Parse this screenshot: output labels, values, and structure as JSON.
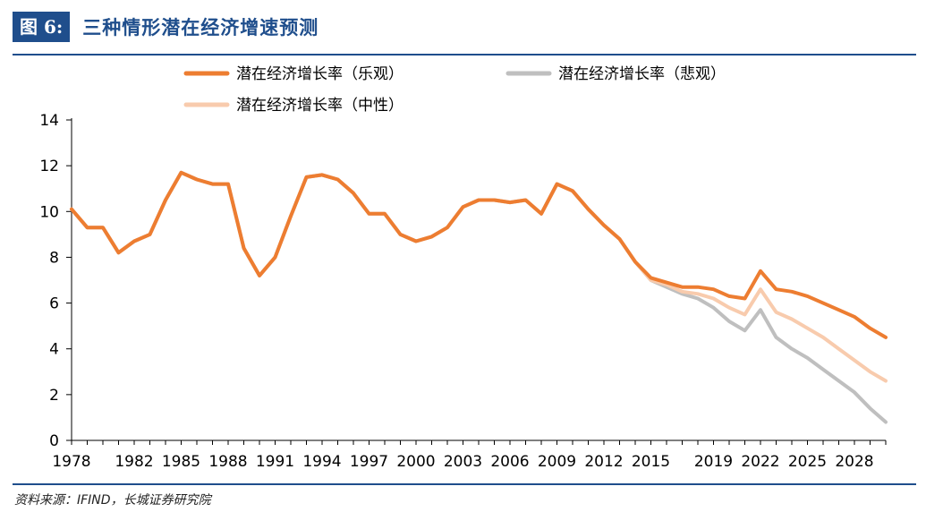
{
  "figure_label": "图 6:",
  "figure_title": "三种情形潜在经济增速预测",
  "source": "资料来源：IFIND，长城证券研究院",
  "colors": {
    "optimistic": "#ED7D31",
    "pessimistic": "#BFBFBF",
    "neutral": "#F8CBAD",
    "accent": "#1F4E8C"
  },
  "chart_data": {
    "type": "line",
    "title": "",
    "xlabel": "",
    "ylabel": "",
    "ylim": [
      0,
      14
    ],
    "xlim": [
      1978,
      2030
    ],
    "yticks": [
      0,
      2,
      4,
      6,
      8,
      10,
      12,
      14
    ],
    "xticks": [
      1978,
      1982,
      1985,
      1988,
      1991,
      1994,
      1997,
      2000,
      2003,
      2006,
      2009,
      2012,
      2015,
      2019,
      2022,
      2025,
      2028
    ],
    "grid": false,
    "legend_position": "top",
    "series": [
      {
        "name": "潜在经济增长率（乐观）",
        "color": "#ED7D31",
        "x": [
          1978,
          1979,
          1980,
          1981,
          1982,
          1983,
          1984,
          1985,
          1986,
          1987,
          1988,
          1989,
          1990,
          1991,
          1992,
          1993,
          1994,
          1995,
          1996,
          1997,
          1998,
          1999,
          2000,
          2001,
          2002,
          2003,
          2004,
          2005,
          2006,
          2007,
          2008,
          2009,
          2010,
          2011,
          2012,
          2013,
          2014,
          2015,
          2016,
          2017,
          2018,
          2019,
          2020,
          2021,
          2022,
          2023,
          2024,
          2025,
          2026,
          2027,
          2028,
          2029,
          2030
        ],
        "values": [
          10.1,
          9.3,
          9.3,
          8.2,
          8.7,
          9.0,
          10.5,
          11.7,
          11.4,
          11.2,
          11.2,
          8.4,
          7.2,
          8.0,
          9.8,
          11.5,
          11.6,
          11.4,
          10.8,
          9.9,
          9.9,
          9.0,
          8.7,
          8.9,
          9.3,
          10.2,
          10.5,
          10.5,
          10.4,
          10.5,
          9.9,
          11.2,
          10.9,
          10.1,
          9.4,
          8.8,
          7.8,
          7.1,
          6.9,
          6.7,
          6.7,
          6.6,
          6.3,
          6.2,
          7.4,
          6.6,
          6.5,
          6.3,
          6.0,
          5.7,
          5.4,
          4.9,
          4.5
        ]
      },
      {
        "name": "潜在经济增长率（悲观）",
        "color": "#BFBFBF",
        "x": [
          1978,
          1979,
          1980,
          1981,
          1982,
          1983,
          1984,
          1985,
          1986,
          1987,
          1988,
          1989,
          1990,
          1991,
          1992,
          1993,
          1994,
          1995,
          1996,
          1997,
          1998,
          1999,
          2000,
          2001,
          2002,
          2003,
          2004,
          2005,
          2006,
          2007,
          2008,
          2009,
          2010,
          2011,
          2012,
          2013,
          2014,
          2015,
          2016,
          2017,
          2018,
          2019,
          2020,
          2021,
          2022,
          2023,
          2024,
          2025,
          2026,
          2027,
          2028,
          2029,
          2030
        ],
        "values": [
          10.1,
          9.3,
          9.3,
          8.2,
          8.7,
          9.0,
          10.5,
          11.7,
          11.4,
          11.2,
          11.2,
          8.4,
          7.2,
          8.0,
          9.8,
          11.5,
          11.6,
          11.4,
          10.8,
          9.9,
          9.9,
          9.0,
          8.7,
          8.9,
          9.3,
          10.2,
          10.5,
          10.5,
          10.4,
          10.5,
          9.9,
          11.2,
          10.9,
          10.1,
          9.4,
          8.8,
          7.8,
          7.0,
          6.7,
          6.4,
          6.2,
          5.8,
          5.2,
          4.8,
          5.7,
          4.5,
          4.0,
          3.6,
          3.1,
          2.6,
          2.1,
          1.4,
          0.8
        ]
      },
      {
        "name": "潜在经济增长率（中性）",
        "color": "#F8CBAD",
        "x": [
          1978,
          1979,
          1980,
          1981,
          1982,
          1983,
          1984,
          1985,
          1986,
          1987,
          1988,
          1989,
          1990,
          1991,
          1992,
          1993,
          1994,
          1995,
          1996,
          1997,
          1998,
          1999,
          2000,
          2001,
          2002,
          2003,
          2004,
          2005,
          2006,
          2007,
          2008,
          2009,
          2010,
          2011,
          2012,
          2013,
          2014,
          2015,
          2016,
          2017,
          2018,
          2019,
          2020,
          2021,
          2022,
          2023,
          2024,
          2025,
          2026,
          2027,
          2028,
          2029,
          2030
        ],
        "values": [
          10.1,
          9.3,
          9.3,
          8.2,
          8.7,
          9.0,
          10.5,
          11.7,
          11.4,
          11.2,
          11.2,
          8.4,
          7.2,
          8.0,
          9.8,
          11.5,
          11.6,
          11.4,
          10.8,
          9.9,
          9.9,
          9.0,
          8.7,
          8.9,
          9.3,
          10.2,
          10.5,
          10.5,
          10.4,
          10.5,
          9.9,
          11.2,
          10.9,
          10.1,
          9.4,
          8.8,
          7.8,
          7.0,
          6.8,
          6.5,
          6.4,
          6.2,
          5.8,
          5.5,
          6.6,
          5.6,
          5.3,
          4.9,
          4.5,
          4.0,
          3.5,
          3.0,
          2.6
        ]
      }
    ]
  }
}
